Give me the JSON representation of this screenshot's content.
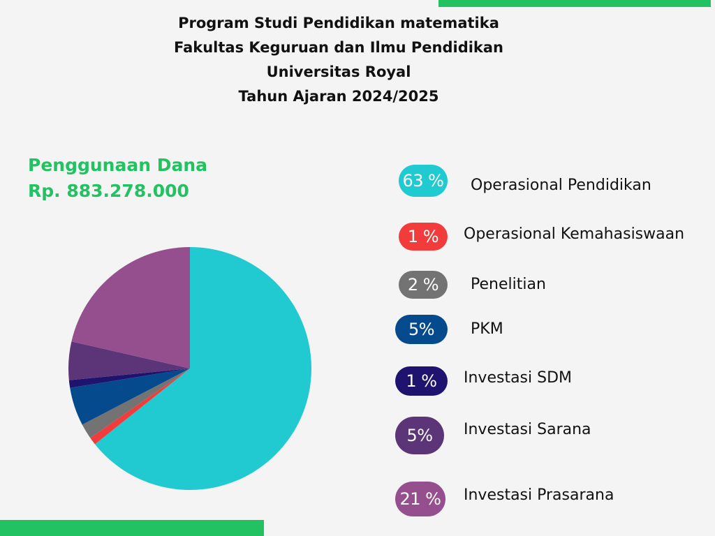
{
  "title_lines": [
    "Program Studi Pendidikan matematika",
    "Fakultas Keguruan dan Ilmu Pendidikan",
    "Universitas Royal",
    "Tahun Ajaran 2024/2025"
  ],
  "fund": {
    "label": "Penggunaan Dana",
    "amount": "Rp. 883.278.000"
  },
  "legend": [
    {
      "pct_text": "63 %",
      "label": "Operasional Pendidikan"
    },
    {
      "pct_text": "1 %",
      "label": "Operasional Kemahasiswaan"
    },
    {
      "pct_text": "2 %",
      "label": "Penelitian"
    },
    {
      "pct_text": "5%",
      "label": "PKM"
    },
    {
      "pct_text": "1 %",
      "label": "Investasi SDM"
    },
    {
      "pct_text": "5%",
      "label": "Investasi Sarana"
    },
    {
      "pct_text": "21 %",
      "label": "Investasi Prasarana"
    }
  ],
  "chart_data": {
    "type": "pie",
    "categories": [
      "Operasional Pendidikan",
      "Operasional Kemahasiswaan",
      "Penelitian",
      "PKM",
      "Investasi SDM",
      "Investasi Sarana",
      "Investasi Prasarana"
    ],
    "values": [
      63,
      1,
      2,
      5,
      1,
      5,
      21
    ],
    "colors": [
      "#21c9d1",
      "#f23b3b",
      "#737373",
      "#054a8c",
      "#1e1470",
      "#5b3577",
      "#954f8e"
    ],
    "start": "top, clockwise"
  },
  "bars": {
    "color": "#22c162"
  }
}
